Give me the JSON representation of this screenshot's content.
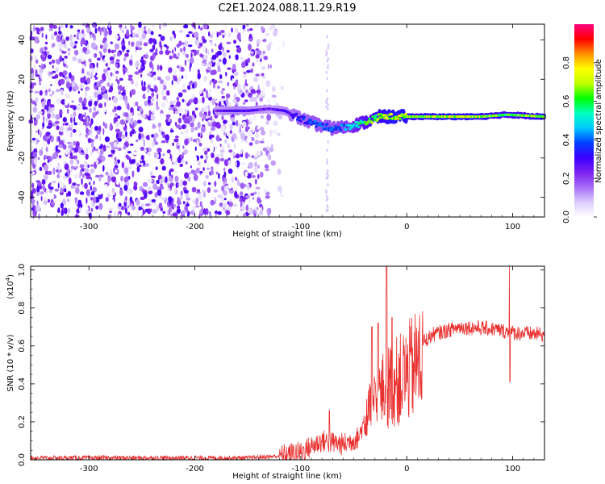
{
  "title": "C2E1.2024.088.11.29.R19",
  "chart_data": [
    {
      "type": "heatmap",
      "xlabel": "Height of straight line (km)",
      "ylabel": "Frequency (Hz)",
      "xlim": [
        -355,
        130
      ],
      "ylim": [
        -50,
        48
      ],
      "x_ticks": [
        -300,
        -200,
        -100,
        0,
        100
      ],
      "y_ticks": [
        -40,
        -20,
        0,
        20,
        40
      ],
      "colorbar": {
        "label": "Normalized spectral amplitude",
        "range": [
          0,
          1
        ],
        "ticks": [
          0.0,
          0.2,
          0.4,
          0.6,
          0.8
        ],
        "colormap": [
          "#ffffff",
          "#dccdfb",
          "#a66cf7",
          "#7b22f0",
          "#3b00ff",
          "#0040ff",
          "#00c8ff",
          "#00ffc0",
          "#00ff00",
          "#c0ff00",
          "#ffff00",
          "#ff9000",
          "#ff0000",
          "#ff007f"
        ]
      },
      "noise_region_x": [
        -355,
        -115
      ],
      "signal_trace": [
        {
          "x": -180,
          "freq": 4,
          "amp": 0.25
        },
        {
          "x": -165,
          "freq": 4,
          "amp": 0.3
        },
        {
          "x": -150,
          "freq": 4,
          "amp": 0.3
        },
        {
          "x": -130,
          "freq": 5,
          "amp": 0.25
        },
        {
          "x": -115,
          "freq": 4,
          "amp": 0.3
        },
        {
          "x": -100,
          "freq": 0,
          "amp": 0.35
        },
        {
          "x": -85,
          "freq": -3,
          "amp": 0.4
        },
        {
          "x": -70,
          "freq": -5,
          "amp": 0.4
        },
        {
          "x": -55,
          "freq": -4,
          "amp": 0.45
        },
        {
          "x": -40,
          "freq": -2,
          "amp": 0.6
        },
        {
          "x": -25,
          "freq": 1,
          "amp": 0.7
        },
        {
          "x": -10,
          "freq": 1,
          "amp": 0.75
        },
        {
          "x": 10,
          "freq": 1,
          "amp": 0.7
        },
        {
          "x": 40,
          "freq": 1,
          "amp": 0.75
        },
        {
          "x": 70,
          "freq": 1,
          "amp": 0.72
        },
        {
          "x": 95,
          "freq": 2,
          "amp": 0.65
        },
        {
          "x": 130,
          "freq": 1,
          "amp": 0.72
        }
      ]
    },
    {
      "type": "line",
      "xlabel": "Height of straight line (km)",
      "ylabel": "SNR (10 * v/v)",
      "y_multiplier": "(x10",
      "y_multiplier_exp": "4",
      "xlim": [
        -355,
        130
      ],
      "ylim": [
        0,
        1.02
      ],
      "x_ticks": [
        -300,
        -200,
        -100,
        0,
        100
      ],
      "y_ticks": [
        0.0,
        0.2,
        0.4,
        0.6,
        0.8,
        1.0
      ],
      "color": "#e8302f",
      "envelope": [
        {
          "x": -355,
          "y": 0.01
        },
        {
          "x": -250,
          "y": 0.01
        },
        {
          "x": -150,
          "y": 0.01
        },
        {
          "x": -120,
          "y": 0.02
        },
        {
          "x": -100,
          "y": 0.04
        },
        {
          "x": -80,
          "y": 0.1
        },
        {
          "x": -60,
          "y": 0.08
        },
        {
          "x": -45,
          "y": 0.12
        },
        {
          "x": -35,
          "y": 0.3
        },
        {
          "x": -20,
          "y": 0.45
        },
        {
          "x": -5,
          "y": 0.5
        },
        {
          "x": 10,
          "y": 0.6
        },
        {
          "x": 25,
          "y": 0.66
        },
        {
          "x": 50,
          "y": 0.7
        },
        {
          "x": 80,
          "y": 0.69
        },
        {
          "x": 100,
          "y": 0.67
        },
        {
          "x": 130,
          "y": 0.66
        }
      ],
      "peaks": [
        {
          "x": -73,
          "y": 0.26
        },
        {
          "x": -33,
          "y": 0.7
        },
        {
          "x": -27,
          "y": 0.72
        },
        {
          "x": -19,
          "y": 1.02
        },
        {
          "x": -14,
          "y": 0.75
        },
        {
          "x": 97,
          "y": 1.02
        },
        {
          "x": 97.5,
          "y": 0.41
        }
      ]
    }
  ]
}
